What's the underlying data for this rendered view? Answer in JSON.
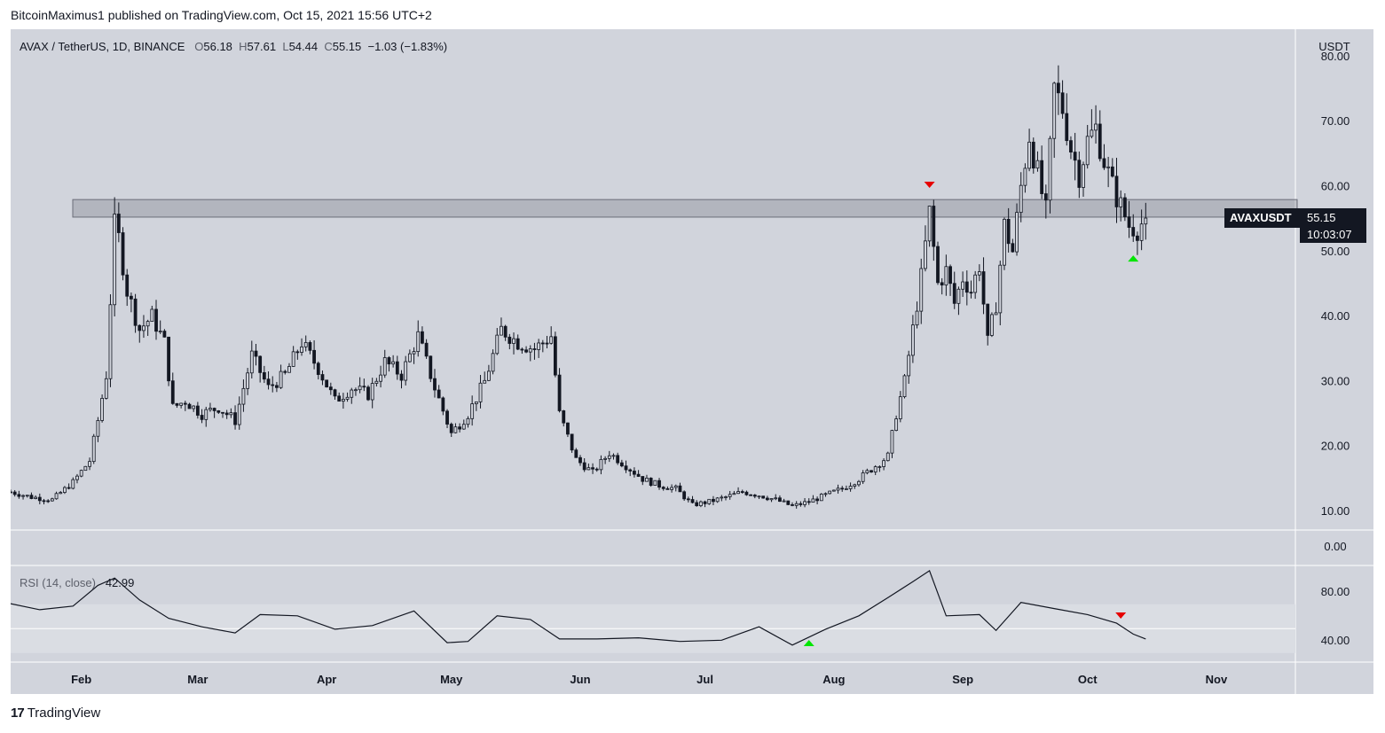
{
  "header": {
    "text": "BitcoinMaximus1 published on TradingView.com, Oct 15, 2021 15:56 UTC+2"
  },
  "legend": {
    "symbol": "AVAX / TetherUS, 1D, BINANCE",
    "o_label": "O",
    "o_value": "56.18",
    "h_label": "H",
    "h_value": "57.61",
    "l_label": "L",
    "l_value": "54.44",
    "c_label": "C",
    "c_value": "55.15",
    "change": "−1.03 (−1.83%)"
  },
  "price_tag": {
    "symbol": "AVAXUSDT",
    "price": "55.15",
    "countdown": "10:03:07"
  },
  "rsi_legend": {
    "label": "RSI (14, close)",
    "value": "42.99"
  },
  "footer": {
    "logo": "17",
    "brand": "TradingView"
  },
  "colors": {
    "background": "#d1d4dc",
    "candle": "#131722",
    "rsi_band": "#dadde3",
    "arrow_up": "#00e600",
    "arrow_down": "#e60000"
  },
  "chart_data": {
    "type": "candlestick",
    "currency_label": "USDT",
    "ylim": [
      5,
      82
    ],
    "y_ticks": [
      "80.00",
      "70.00",
      "60.00",
      "50.00",
      "40.00",
      "30.00",
      "20.00",
      "10.00",
      "0.00"
    ],
    "x_ticks": [
      "Feb",
      "Mar",
      "Apr",
      "May",
      "Jun",
      "Jul",
      "Aug",
      "Sep",
      "Oct",
      "Nov"
    ],
    "x_range": [
      "2021-01-15",
      "2021-11-20"
    ],
    "resistance_zone": [
      55.3,
      58.0
    ],
    "last_close": 55.15,
    "closes": [
      {
        "date": "2021-01-15",
        "close": 13.0
      },
      {
        "date": "2021-01-20",
        "close": 12.2
      },
      {
        "date": "2021-01-25",
        "close": 11.8
      },
      {
        "date": "2021-01-30",
        "close": 14.5
      },
      {
        "date": "2021-02-03",
        "close": 17.8
      },
      {
        "date": "2021-02-05",
        "close": 24.0
      },
      {
        "date": "2021-02-07",
        "close": 31.0
      },
      {
        "date": "2021-02-09",
        "close": 54.0
      },
      {
        "date": "2021-02-10",
        "close": 52.0
      },
      {
        "date": "2021-02-12",
        "close": 44.0
      },
      {
        "date": "2021-02-15",
        "close": 38.0
      },
      {
        "date": "2021-02-18",
        "close": 40.0
      },
      {
        "date": "2021-02-21",
        "close": 36.0
      },
      {
        "date": "2021-02-23",
        "close": 26.0
      },
      {
        "date": "2021-02-26",
        "close": 27.0
      },
      {
        "date": "2021-03-02",
        "close": 25.0
      },
      {
        "date": "2021-03-06",
        "close": 26.0
      },
      {
        "date": "2021-03-10",
        "close": 24.0
      },
      {
        "date": "2021-03-14",
        "close": 34.0
      },
      {
        "date": "2021-03-18",
        "close": 29.0
      },
      {
        "date": "2021-03-22",
        "close": 31.0
      },
      {
        "date": "2021-03-26",
        "close": 36.0
      },
      {
        "date": "2021-03-30",
        "close": 32.0
      },
      {
        "date": "2021-04-03",
        "close": 27.0
      },
      {
        "date": "2021-04-07",
        "close": 29.0
      },
      {
        "date": "2021-04-11",
        "close": 28.0
      },
      {
        "date": "2021-04-15",
        "close": 33.0
      },
      {
        "date": "2021-04-19",
        "close": 31.0
      },
      {
        "date": "2021-04-23",
        "close": 37.0
      },
      {
        "date": "2021-04-27",
        "close": 29.0
      },
      {
        "date": "2021-05-01",
        "close": 22.0
      },
      {
        "date": "2021-05-05",
        "close": 25.0
      },
      {
        "date": "2021-05-09",
        "close": 30.0
      },
      {
        "date": "2021-05-13",
        "close": 38.0
      },
      {
        "date": "2021-05-17",
        "close": 36.0
      },
      {
        "date": "2021-05-21",
        "close": 35.0
      },
      {
        "date": "2021-05-25",
        "close": 37.0
      },
      {
        "date": "2021-05-27",
        "close": 25.0
      },
      {
        "date": "2021-05-31",
        "close": 18.0
      },
      {
        "date": "2021-06-04",
        "close": 16.0
      },
      {
        "date": "2021-06-08",
        "close": 19.0
      },
      {
        "date": "2021-06-12",
        "close": 17.0
      },
      {
        "date": "2021-06-16",
        "close": 15.0
      },
      {
        "date": "2021-06-20",
        "close": 14.0
      },
      {
        "date": "2021-06-24",
        "close": 13.5
      },
      {
        "date": "2021-06-28",
        "close": 11.0
      },
      {
        "date": "2021-07-02",
        "close": 11.5
      },
      {
        "date": "2021-07-06",
        "close": 12.2
      },
      {
        "date": "2021-07-10",
        "close": 13.0
      },
      {
        "date": "2021-07-14",
        "close": 12.5
      },
      {
        "date": "2021-07-18",
        "close": 11.8
      },
      {
        "date": "2021-07-22",
        "close": 10.8
      },
      {
        "date": "2021-07-26",
        "close": 11.5
      },
      {
        "date": "2021-07-30",
        "close": 12.5
      },
      {
        "date": "2021-08-03",
        "close": 13.5
      },
      {
        "date": "2021-08-07",
        "close": 15.0
      },
      {
        "date": "2021-08-11",
        "close": 17.0
      },
      {
        "date": "2021-08-14",
        "close": 18.5
      },
      {
        "date": "2021-08-16",
        "close": 25.0
      },
      {
        "date": "2021-08-18",
        "close": 30.0
      },
      {
        "date": "2021-08-20",
        "close": 38.0
      },
      {
        "date": "2021-08-22",
        "close": 46.0
      },
      {
        "date": "2021-08-24",
        "close": 56.0
      },
      {
        "date": "2021-08-26",
        "close": 45.0
      },
      {
        "date": "2021-08-28",
        "close": 47.0
      },
      {
        "date": "2021-08-30",
        "close": 42.0
      },
      {
        "date": "2021-09-01",
        "close": 46.0
      },
      {
        "date": "2021-09-03",
        "close": 44.0
      },
      {
        "date": "2021-09-05",
        "close": 48.0
      },
      {
        "date": "2021-09-07",
        "close": 36.0
      },
      {
        "date": "2021-09-09",
        "close": 42.0
      },
      {
        "date": "2021-09-11",
        "close": 54.0
      },
      {
        "date": "2021-09-13",
        "close": 50.0
      },
      {
        "date": "2021-09-15",
        "close": 60.0
      },
      {
        "date": "2021-09-17",
        "close": 68.0
      },
      {
        "date": "2021-09-19",
        "close": 62.0
      },
      {
        "date": "2021-09-21",
        "close": 56.0
      },
      {
        "date": "2021-09-23",
        "close": 75.0
      },
      {
        "date": "2021-09-25",
        "close": 72.0
      },
      {
        "date": "2021-09-27",
        "close": 66.0
      },
      {
        "date": "2021-09-29",
        "close": 62.0
      },
      {
        "date": "2021-10-01",
        "close": 67.0
      },
      {
        "date": "2021-10-03",
        "close": 69.0
      },
      {
        "date": "2021-10-05",
        "close": 64.0
      },
      {
        "date": "2021-10-07",
        "close": 60.0
      },
      {
        "date": "2021-10-09",
        "close": 57.0
      },
      {
        "date": "2021-10-11",
        "close": 54.0
      },
      {
        "date": "2021-10-13",
        "close": 53.5
      },
      {
        "date": "2021-10-15",
        "close": 55.15
      }
    ],
    "annotations": [
      {
        "type": "arrow_down",
        "color": "red",
        "date": "2021-08-24",
        "price": 60.2
      },
      {
        "type": "arrow_up",
        "color": "green",
        "date": "2021-10-12",
        "price": 49.0
      }
    ],
    "rsi": {
      "label": "RSI (14, close)",
      "current": 42.99,
      "ylim": [
        30,
        100
      ],
      "y_ticks": [
        "80.00",
        "40.00"
      ],
      "band": [
        30,
        70
      ],
      "values": [
        {
          "date": "2021-01-15",
          "value": 72
        },
        {
          "date": "2021-01-22",
          "value": 64
        },
        {
          "date": "2021-01-30",
          "value": 70
        },
        {
          "date": "2021-02-05",
          "value": 84
        },
        {
          "date": "2021-02-09",
          "value": 93
        },
        {
          "date": "2021-02-15",
          "value": 72
        },
        {
          "date": "2021-02-22",
          "value": 60
        },
        {
          "date": "2021-03-02",
          "value": 50
        },
        {
          "date": "2021-03-10",
          "value": 48
        },
        {
          "date": "2021-03-16",
          "value": 60
        },
        {
          "date": "2021-03-25",
          "value": 62
        },
        {
          "date": "2021-04-03",
          "value": 48
        },
        {
          "date": "2021-04-12",
          "value": 54
        },
        {
          "date": "2021-04-22",
          "value": 63
        },
        {
          "date": "2021-04-30",
          "value": 40
        },
        {
          "date": "2021-05-05",
          "value": 38
        },
        {
          "date": "2021-05-12",
          "value": 62
        },
        {
          "date": "2021-05-20",
          "value": 56
        },
        {
          "date": "2021-05-27",
          "value": 43
        },
        {
          "date": "2021-06-05",
          "value": 40
        },
        {
          "date": "2021-06-15",
          "value": 44
        },
        {
          "date": "2021-06-25",
          "value": 38
        },
        {
          "date": "2021-07-05",
          "value": 42
        },
        {
          "date": "2021-07-14",
          "value": 50
        },
        {
          "date": "2021-07-22",
          "value": 38
        },
        {
          "date": "2021-07-30",
          "value": 48
        },
        {
          "date": "2021-08-07",
          "value": 62
        },
        {
          "date": "2021-08-14",
          "value": 74
        },
        {
          "date": "2021-08-20",
          "value": 90
        },
        {
          "date": "2021-08-24",
          "value": 96
        },
        {
          "date": "2021-08-28",
          "value": 62
        },
        {
          "date": "2021-09-05",
          "value": 60
        },
        {
          "date": "2021-09-09",
          "value": 50
        },
        {
          "date": "2021-09-15",
          "value": 70
        },
        {
          "date": "2021-09-23",
          "value": 68
        },
        {
          "date": "2021-10-01",
          "value": 60
        },
        {
          "date": "2021-10-08",
          "value": 56
        },
        {
          "date": "2021-10-12",
          "value": 44
        },
        {
          "date": "2021-10-15",
          "value": 43
        }
      ],
      "annotations": [
        {
          "type": "arrow_up",
          "color": "green",
          "date": "2021-07-26"
        },
        {
          "type": "arrow_down",
          "color": "red",
          "date": "2021-10-09"
        }
      ]
    }
  }
}
